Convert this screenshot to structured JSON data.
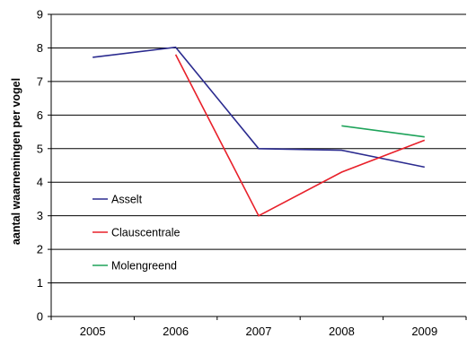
{
  "chart_data": {
    "type": "line",
    "title": "",
    "xlabel": "",
    "ylabel": "aantal waarnemingen per vogel",
    "categories": [
      "2005",
      "2006",
      "2007",
      "2008",
      "2009"
    ],
    "ylim": [
      0,
      9
    ],
    "yticks": [
      0,
      1,
      2,
      3,
      4,
      5,
      6,
      7,
      8,
      9
    ],
    "grid": {
      "y": true,
      "x": false
    },
    "legend_position": "left-center",
    "series": [
      {
        "name": "Asselt",
        "color": "#2b2b8f",
        "values": [
          7.72,
          8.02,
          5.0,
          4.95,
          4.45
        ]
      },
      {
        "name": "Clauscentrale",
        "color": "#e8202a",
        "values": [
          null,
          7.8,
          3.0,
          4.3,
          5.25
        ]
      },
      {
        "name": "Molengreend",
        "color": "#1ea35a",
        "values": [
          null,
          null,
          null,
          5.68,
          5.35
        ]
      }
    ]
  }
}
